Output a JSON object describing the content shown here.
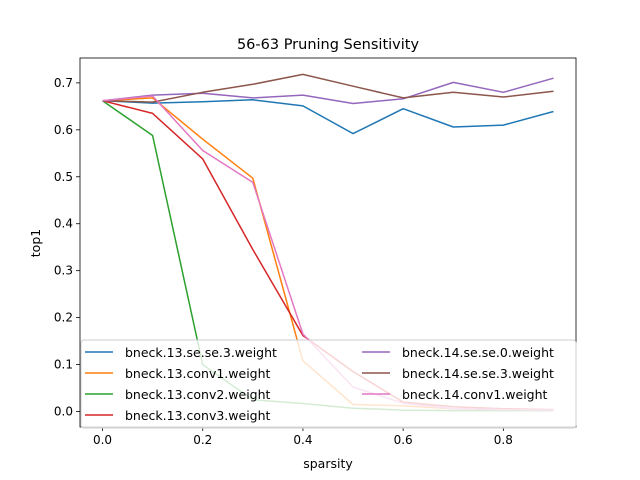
{
  "chart_data": {
    "type": "line",
    "title": "56-63 Pruning Sensitivity",
    "xlabel": "sparsity",
    "ylabel": "top1",
    "xlim": [
      -0.045,
      0.945
    ],
    "ylim": [
      -0.033,
      0.753
    ],
    "xticks": [
      0.0,
      0.2,
      0.4,
      0.6,
      0.8
    ],
    "xtick_labels": [
      "0.0",
      "0.2",
      "0.4",
      "0.6",
      "0.8"
    ],
    "yticks": [
      0.0,
      0.1,
      0.2,
      0.3,
      0.4,
      0.5,
      0.6,
      0.7
    ],
    "ytick_labels": [
      "0.0",
      "0.1",
      "0.2",
      "0.3",
      "0.4",
      "0.5",
      "0.6",
      "0.7"
    ],
    "grid": false,
    "legend_placement": "lower center",
    "x": [
      0.0,
      0.1,
      0.2,
      0.3,
      0.4,
      0.5,
      0.6,
      0.7,
      0.8,
      0.9
    ],
    "series": [
      {
        "name": "bneck.13.se.se.3.weight",
        "color": "#1f77b4",
        "values": [
          0.662,
          0.657,
          0.66,
          0.664,
          0.651,
          0.592,
          0.645,
          0.606,
          0.61,
          0.639
        ]
      },
      {
        "name": "bneck.13.conv1.weight",
        "color": "#ff7f0e",
        "values": [
          0.662,
          0.668,
          0.58,
          0.497,
          0.108,
          0.015,
          0.012,
          0.006,
          0.004,
          0.002
        ]
      },
      {
        "name": "bneck.13.conv2.weight",
        "color": "#2ca02c",
        "values": [
          0.662,
          0.588,
          0.1,
          0.025,
          0.017,
          0.007,
          0.003,
          0.002,
          0.002,
          0.002
        ]
      },
      {
        "name": "bneck.13.conv3.weight",
        "color": "#d62728",
        "values": [
          0.662,
          0.635,
          0.538,
          0.345,
          0.162,
          0.085,
          0.02,
          0.01,
          0.006,
          0.004
        ]
      },
      {
        "name": "bneck.14.se.se.0.weight",
        "color": "#9467bd",
        "values": [
          0.662,
          0.674,
          0.678,
          0.668,
          0.674,
          0.656,
          0.666,
          0.701,
          0.68,
          0.71
        ]
      },
      {
        "name": "bneck.14.se.se.3.weight",
        "color": "#8c564b",
        "values": [
          0.662,
          0.659,
          0.68,
          0.697,
          0.718,
          0.693,
          0.668,
          0.68,
          0.67,
          0.682
        ]
      },
      {
        "name": "bneck.14.conv1.weight",
        "color": "#e377c2",
        "values": [
          0.662,
          0.672,
          0.556,
          0.488,
          0.165,
          0.052,
          0.018,
          0.006,
          0.004,
          0.003
        ]
      }
    ]
  }
}
